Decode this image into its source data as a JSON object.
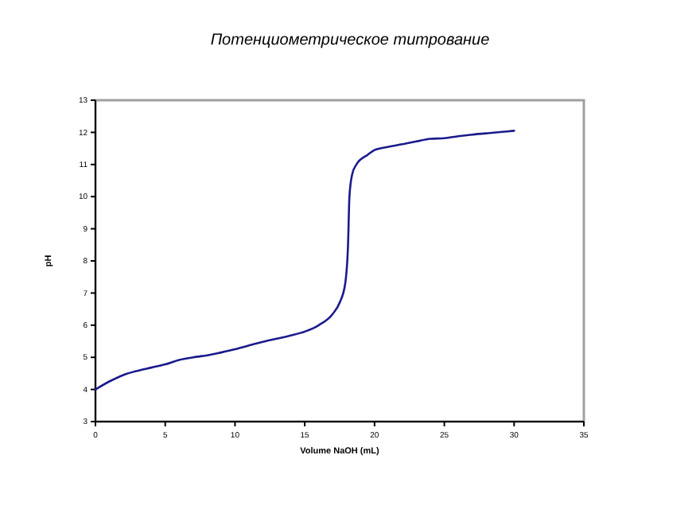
{
  "chart_data": {
    "type": "line",
    "title": "Потенциометрическое титрование",
    "xlabel": "Volume NaOH (mL)",
    "ylabel": "pH",
    "xlim": [
      0,
      35
    ],
    "xticks": [
      0,
      5,
      10,
      15,
      20,
      25,
      30,
      35
    ],
    "ylim": [
      3,
      13
    ],
    "yticks": [
      3,
      4,
      5,
      6,
      7,
      8,
      9,
      10,
      11,
      12,
      13
    ],
    "grid": false,
    "series": [
      {
        "color": "#1a1a8c",
        "x": [
          0,
          1,
          2,
          3,
          4,
          5,
          6,
          7,
          8,
          9,
          10,
          11,
          12,
          13,
          14,
          15,
          16,
          17,
          17.5,
          17.9,
          18.1,
          18.2,
          18.4,
          18.7,
          19.5,
          20,
          21,
          22,
          23,
          24,
          25,
          26,
          27,
          28,
          29,
          30
        ],
        "values": [
          4,
          4.25,
          4.45,
          4.58,
          4.68,
          4.78,
          4.92,
          5.0,
          5.06,
          5.15,
          5.25,
          5.37,
          5.48,
          5.58,
          5.68,
          5.8,
          6.0,
          6.35,
          6.7,
          7.3,
          8.5,
          10,
          10.7,
          11.0,
          11.3,
          11.45,
          11.55,
          11.63,
          11.72,
          11.8,
          11.82,
          11.88,
          11.93,
          11.97,
          12.01,
          12.05
        ]
      }
    ]
  }
}
